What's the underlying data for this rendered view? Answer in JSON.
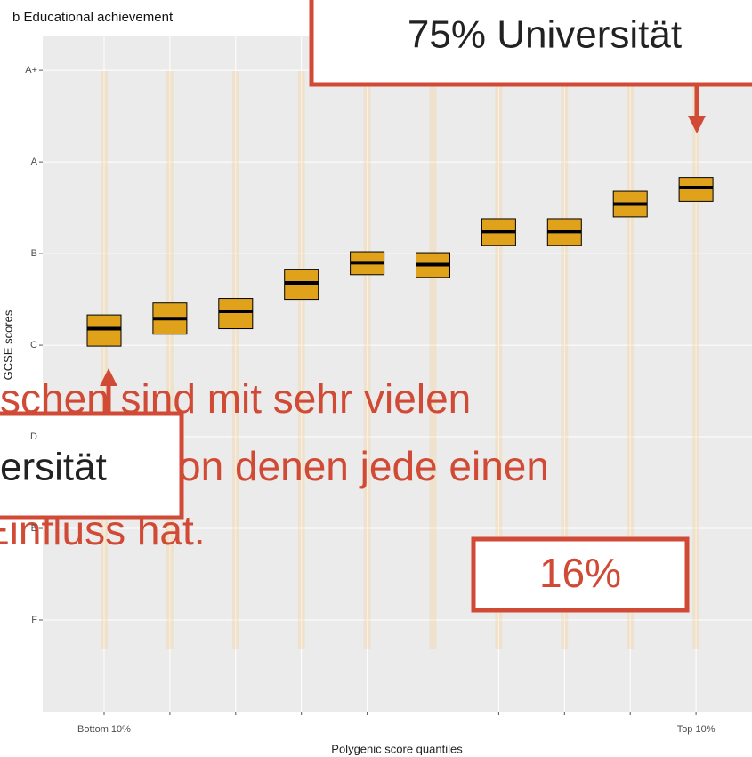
{
  "chart_data": {
    "type": "crossbar",
    "title": "b  Educational achievement",
    "x_label": "Polygenic score quantiles",
    "y_label": "GCSE scores",
    "categories": [
      "Bottom 10%",
      null,
      null,
      null,
      null,
      null,
      null,
      null,
      null,
      "Top 10%"
    ],
    "series": [
      {
        "name": "mean",
        "color": "#000000",
        "values": [
          4.18,
          4.29,
          4.37,
          4.68,
          4.9,
          4.88,
          5.24,
          5.24,
          5.54,
          5.72
        ]
      },
      {
        "name": "lower",
        "color": "#e0a21a",
        "values": [
          3.99,
          4.12,
          4.18,
          4.5,
          4.77,
          4.74,
          5.09,
          5.09,
          5.4,
          5.57
        ]
      },
      {
        "name": "upper",
        "color": "#e0a21a",
        "values": [
          4.33,
          4.46,
          4.51,
          4.83,
          5.02,
          5.01,
          5.38,
          5.38,
          5.68,
          5.83
        ]
      }
    ],
    "ylim": [
      0,
      7.38
    ],
    "yticks": [
      {
        "value": 7,
        "label": "A+"
      },
      {
        "value": 6,
        "label": "A"
      },
      {
        "value": 5,
        "label": "B"
      },
      {
        "value": 4,
        "label": "C"
      },
      {
        "value": 3,
        "label": "D"
      },
      {
        "value": 2,
        "label": "E"
      },
      {
        "value": 1,
        "label": "F"
      }
    ],
    "grid": true
  },
  "annotations": {
    "top_box": "75% Universität",
    "left_box": "ersität",
    "right_box": "16%",
    "overlay_lines": [
      "schen sind mit sehr vielen",
      "on denen jede einen",
      "Einfluss hat."
    ]
  }
}
